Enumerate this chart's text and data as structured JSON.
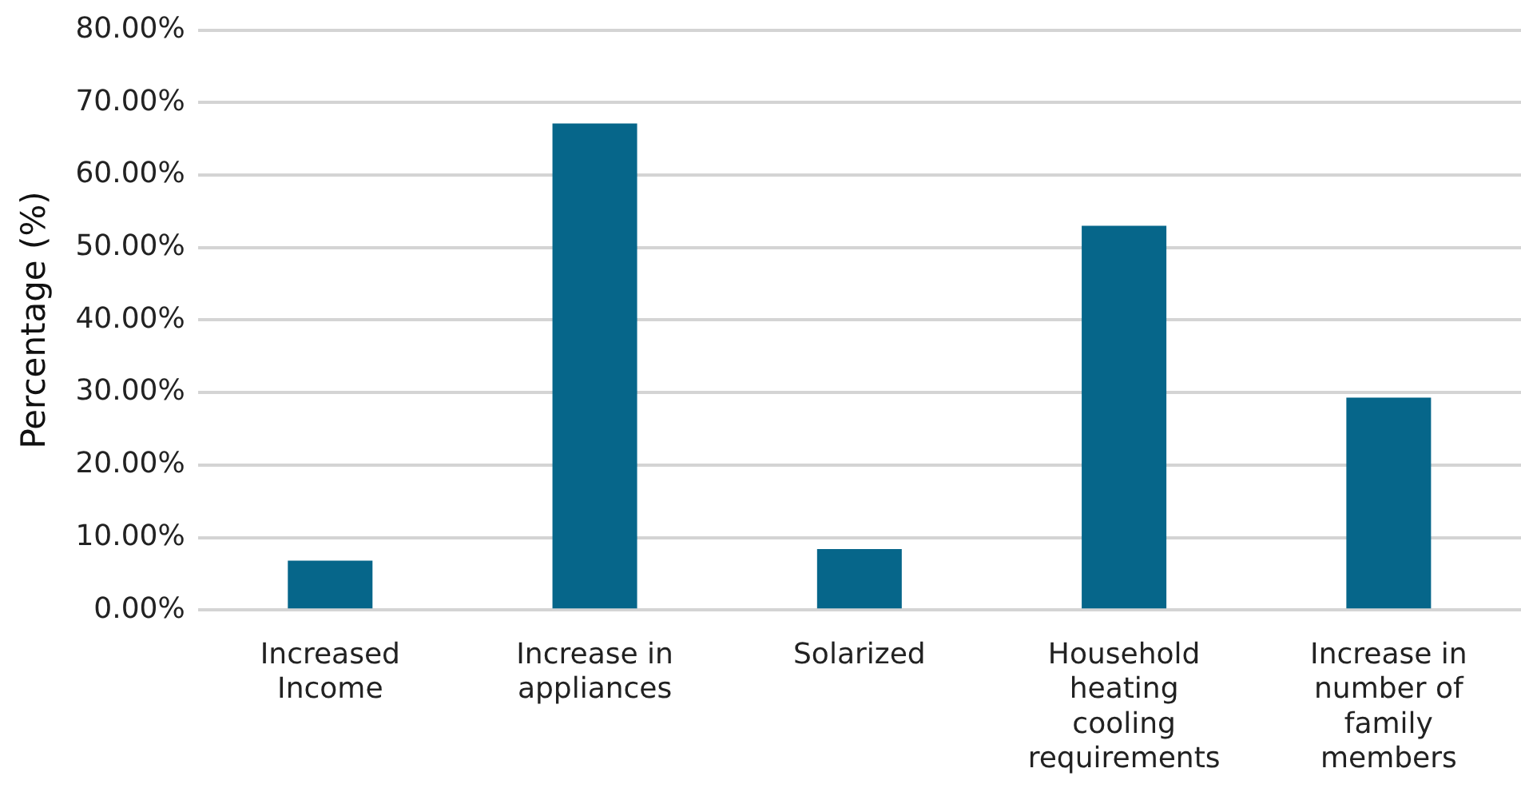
{
  "chart_data": {
    "type": "bar",
    "ylabel": "Percentage (%)",
    "categories": [
      "Increased Income",
      "Increase in appliances",
      "Solarized",
      "Household heating cooling requirements",
      "Increase in number of family members"
    ],
    "values": [
      6.8,
      67.1,
      8.4,
      53.0,
      29.3
    ],
    "color": "#06668a",
    "ylim": [
      0,
      80
    ],
    "yticks": [
      {
        "value": 0,
        "label": "0.00%"
      },
      {
        "value": 10,
        "label": "10.00%"
      },
      {
        "value": 20,
        "label": "20.00%"
      },
      {
        "value": 30,
        "label": "30.00%"
      },
      {
        "value": 40,
        "label": "40.00%"
      },
      {
        "value": 50,
        "label": "50.00%"
      },
      {
        "value": 60,
        "label": "60.00%"
      },
      {
        "value": 70,
        "label": "70.00%"
      },
      {
        "value": 80,
        "label": "80.00%"
      }
    ],
    "grid": "y"
  }
}
